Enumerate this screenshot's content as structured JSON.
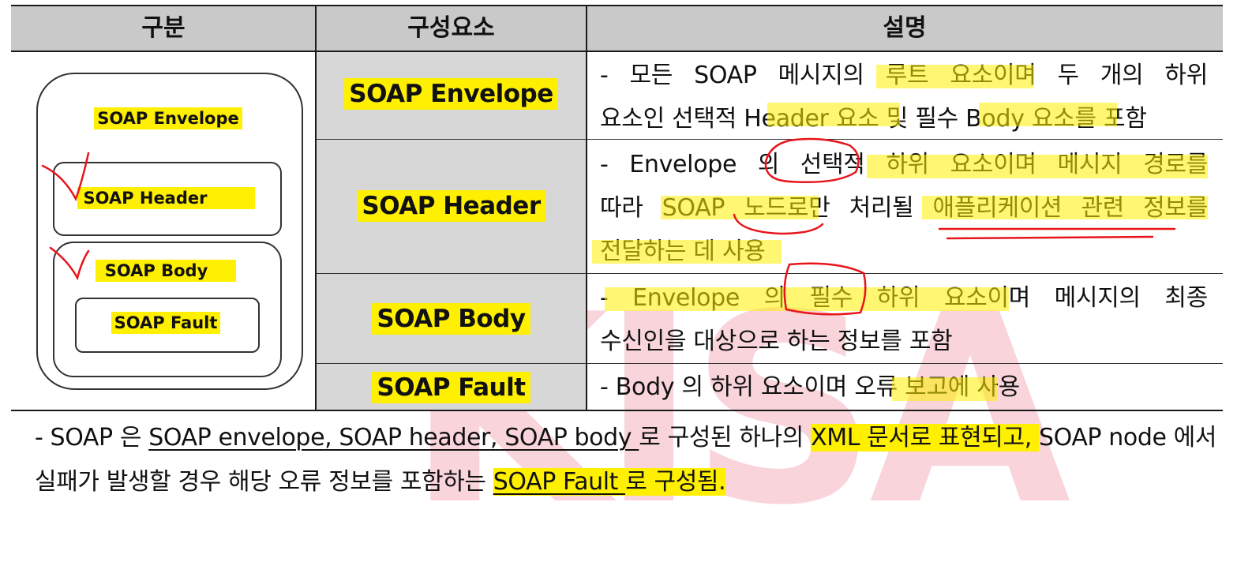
{
  "header": {
    "col1": "구분",
    "col2": "구성요소",
    "col3": "설명"
  },
  "diagram": {
    "envelope": "SOAP Envelope",
    "header": "SOAP Header",
    "body": "SOAP Body",
    "fault": "SOAP Fault"
  },
  "rows": [
    {
      "component": "SOAP Envelope",
      "lines": [
        "- 모든 SOAP 메시지의 루트 요소이며 두 개의 하위",
        "요소인 선택적 Header 요소 및 필수 Body 요소를 포함"
      ]
    },
    {
      "component": "SOAP Header",
      "lines": [
        "- Envelope 의 선택적 하위 요소이며 메시지 경로를",
        "따라 SOAP 노드로만 처리될 애플리케이션 관련 정보를",
        "전달하는 데 사용"
      ]
    },
    {
      "component": "SOAP Body",
      "lines": [
        "- Envelope 의 필수 하위 요소이며 메시지의 최종",
        "수신인을 대상으로 하는 정보를 포함"
      ]
    },
    {
      "component": "SOAP Fault",
      "lines": [
        "- Body 의 하위 요소이며 오류 보고에 사용"
      ]
    }
  ],
  "footnote": {
    "p1": "- SOAP 은 ",
    "p2": "SOAP envelope, SOAP header, SOAP body ",
    "p3": "로 구성된 하나의 ",
    "p4": "XML 문서로 표현되고, ",
    "p5": "SOAP node 에서",
    "p6": "실패가 발생할 경우 해당 오류 정보를 포함하는 ",
    "p7": "SOAP Fault ",
    "p8": "로 구성됨."
  },
  "watermark": "KISA",
  "colors": {
    "highlight": "#ffef00",
    "header_bg": "#c9c9c9",
    "component_bg": "#d7d7d7",
    "annotation": "#e8141c",
    "watermark": "#f7c7cf"
  }
}
